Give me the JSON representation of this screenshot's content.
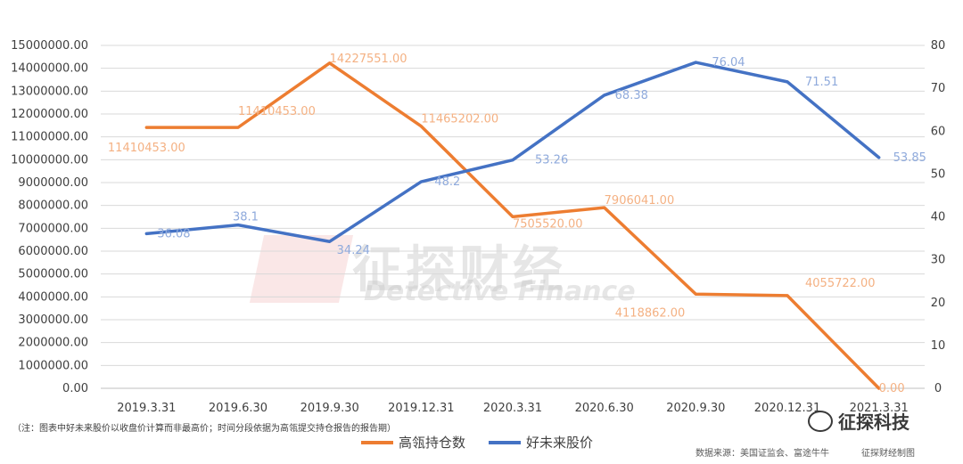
{
  "chart_data": {
    "type": "line",
    "categories": [
      "2019.3.31",
      "2019.6.30",
      "2019.9.30",
      "2019.12.31",
      "2020.3.31",
      "2020.6.30",
      "2020.9.30",
      "2020.12.31",
      "2021.3.31"
    ],
    "left_ticks": [
      "0.00",
      "1000000.00",
      "2000000.00",
      "3000000.00",
      "4000000.00",
      "5000000.00",
      "6000000.00",
      "7000000.00",
      "8000000.00",
      "9000000.00",
      "10000000.00",
      "11000000.00",
      "12000000.00",
      "13000000.00",
      "14000000.00",
      "15000000.00"
    ],
    "right_ticks": [
      "0",
      "10",
      "20",
      "30",
      "40",
      "50",
      "60",
      "70",
      "80"
    ],
    "ylim_left": [
      0,
      15000000
    ],
    "ylim_right": [
      0,
      80
    ],
    "series": [
      {
        "name": "高瓴持仓数",
        "axis": "left",
        "color": "#ED7D31",
        "label_color": "#F4B183",
        "values": [
          11410453,
          11410453,
          14227551,
          11465202,
          7505520,
          7906041,
          4118862,
          4055722,
          0
        ],
        "labels": [
          "11410453.00",
          "11410453.00",
          "14227551.00",
          "11465202.00",
          "7505520.00",
          "7906041.00",
          "4118862.00",
          "4055722.00",
          "0.00"
        ]
      },
      {
        "name": "好未来股价",
        "axis": "right",
        "color": "#4472C4",
        "label_color": "#8FAADC",
        "values": [
          36.08,
          38.1,
          34.24,
          48.2,
          53.26,
          68.38,
          76.04,
          71.51,
          53.85
        ],
        "labels": [
          "36.08",
          "38.1",
          "34.24",
          "48.2",
          "53.26",
          "68.38",
          "76.04",
          "71.51",
          "53.85"
        ]
      }
    ],
    "legend_position": "bottom"
  },
  "note": "（注：图表中好未来股价以收盘价计算而非最高价；时间分段依据为高瓴提交持仓报告的报告期）",
  "source": "数据来源：美国证监会、富途牛牛",
  "credit": "征探财经制图",
  "brand": "征探科技",
  "watermark": {
    "cn": "征探财经",
    "en": "Detective Finance"
  }
}
